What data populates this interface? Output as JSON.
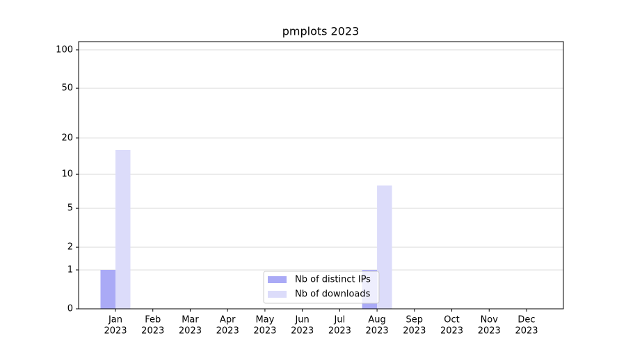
{
  "chart_data": {
    "type": "bar",
    "title": "pmplots 2023",
    "categories": [
      [
        "Jan",
        "2023"
      ],
      [
        "Feb",
        "2023"
      ],
      [
        "Mar",
        "2023"
      ],
      [
        "Apr",
        "2023"
      ],
      [
        "May",
        "2023"
      ],
      [
        "Jun",
        "2023"
      ],
      [
        "Jul",
        "2023"
      ],
      [
        "Aug",
        "2023"
      ],
      [
        "Sep",
        "2023"
      ],
      [
        "Oct",
        "2023"
      ],
      [
        "Nov",
        "2023"
      ],
      [
        "Dec",
        "2023"
      ]
    ],
    "series": [
      {
        "name": "Nb of distinct IPs",
        "color": "#aaaaf6",
        "values": [
          1,
          0,
          0,
          0,
          0,
          0,
          0,
          1,
          0,
          0,
          0,
          0
        ]
      },
      {
        "name": "Nb of downloads",
        "color": "#dcdcfa",
        "values": [
          16,
          0,
          0,
          0,
          0,
          0,
          0,
          8,
          0,
          0,
          0,
          0
        ]
      }
    ],
    "yscale": "log1p",
    "ylim": [
      0,
      116
    ],
    "yticks": [
      0,
      1,
      2,
      5,
      10,
      20,
      50,
      100
    ],
    "grid": true,
    "legend": "lower center"
  }
}
